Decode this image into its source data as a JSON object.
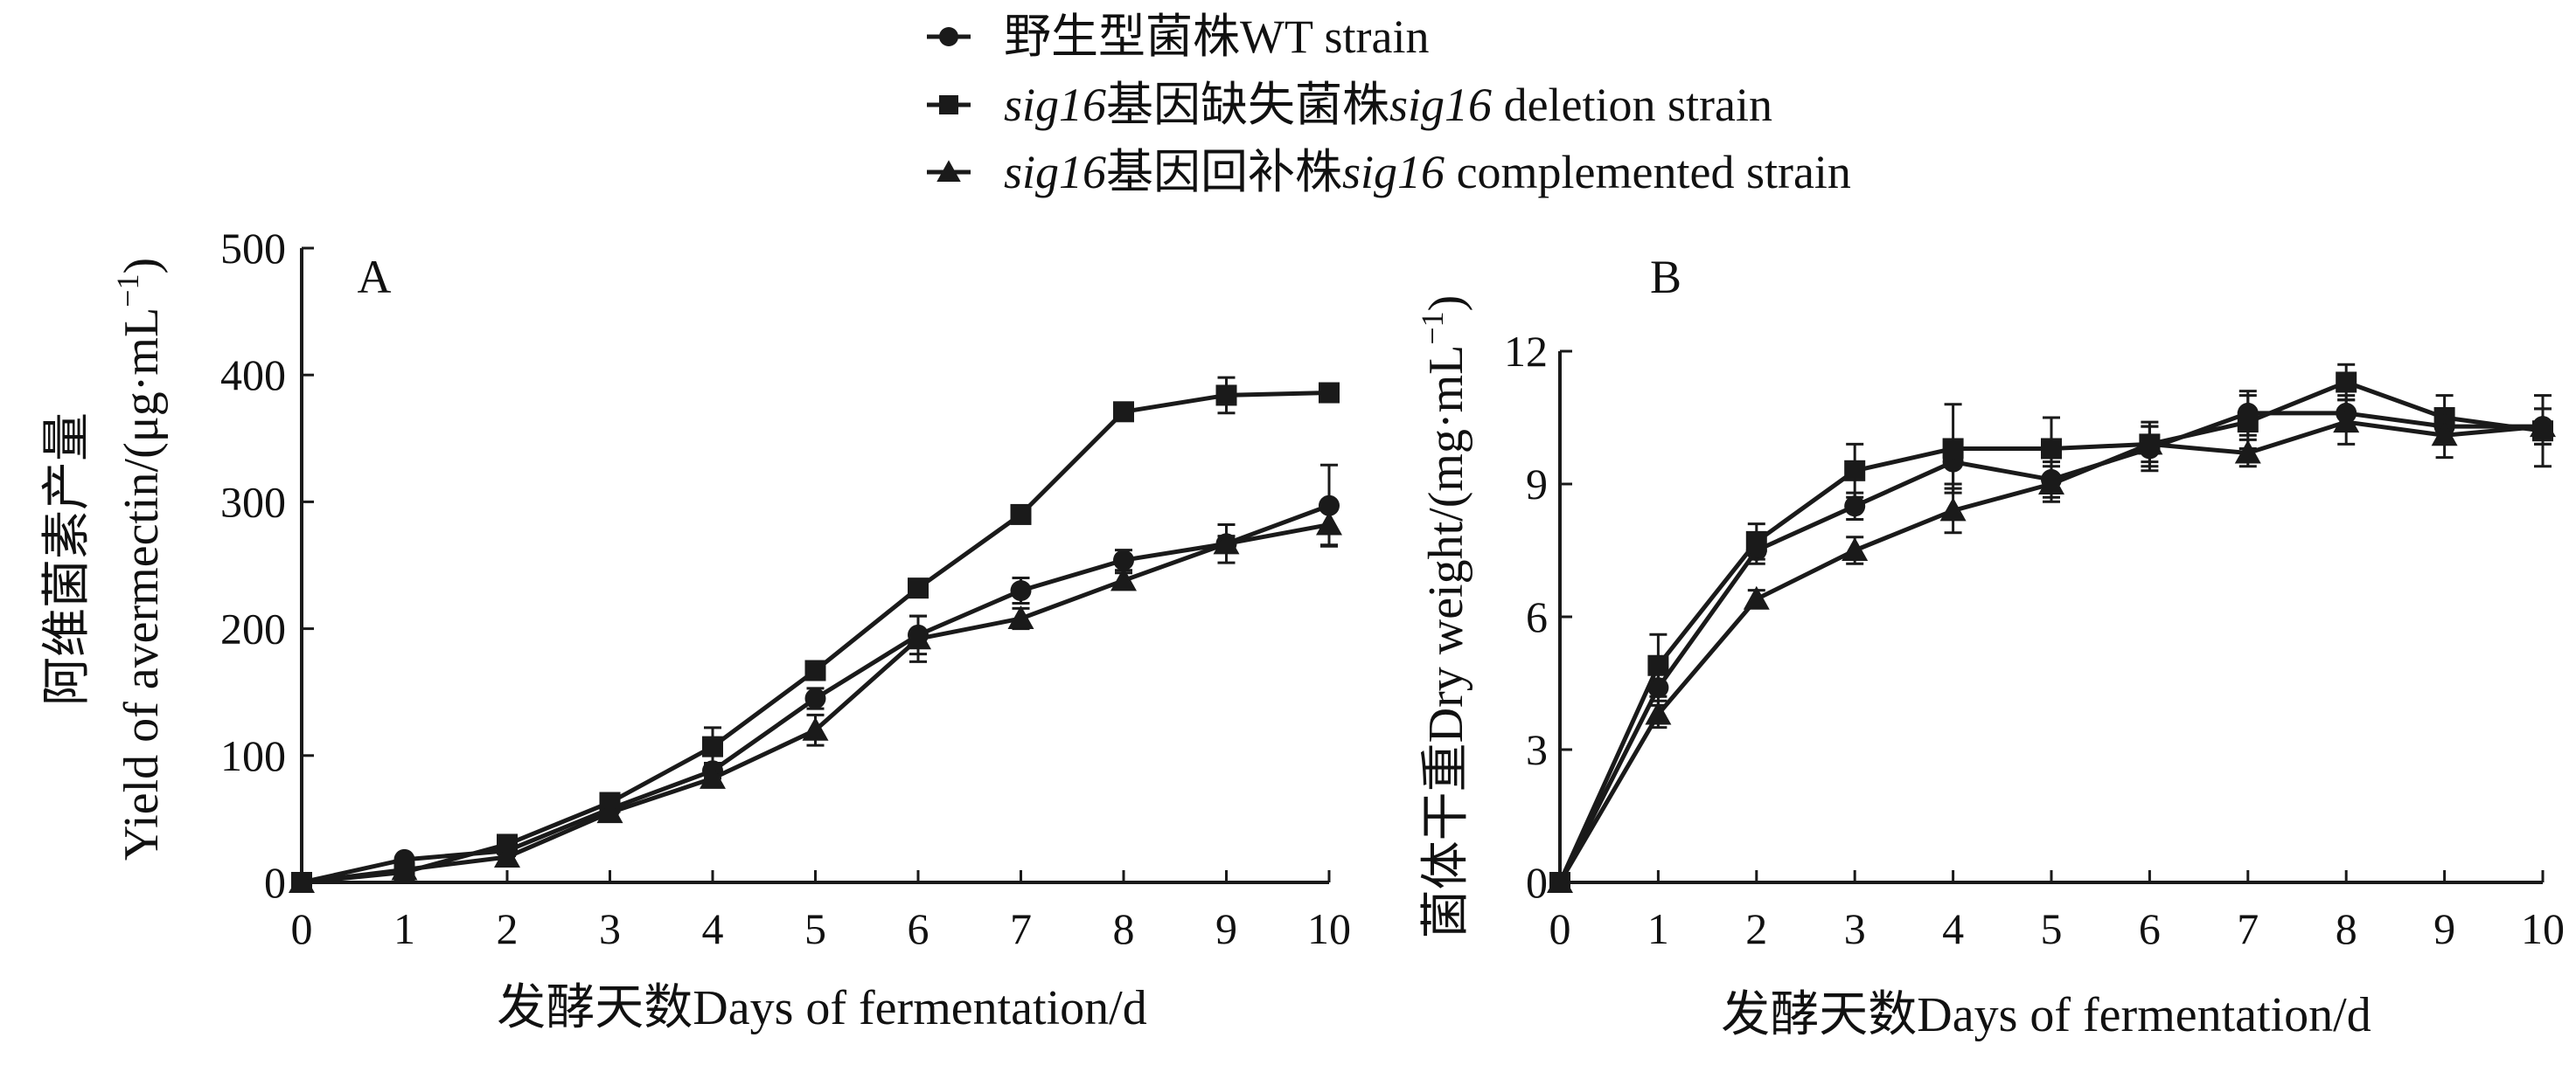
{
  "legend": {
    "items": [
      {
        "marker": "circle",
        "parts": [
          {
            "t": "野生型菌株WT strain",
            "i": false
          }
        ]
      },
      {
        "marker": "square",
        "parts": [
          {
            "t": "sig16",
            "i": true
          },
          {
            "t": "基因缺失菌株",
            "i": false
          },
          {
            "t": "sig16",
            "i": true
          },
          {
            "t": " deletion strain",
            "i": false
          }
        ]
      },
      {
        "marker": "triangle",
        "parts": [
          {
            "t": "sig16",
            "i": true
          },
          {
            "t": "基因回补株",
            "i": false
          },
          {
            "t": "sig16",
            "i": true
          },
          {
            "t": " complemented strain",
            "i": false
          }
        ]
      }
    ]
  },
  "chart_data": [
    {
      "type": "line",
      "panel_label": "A",
      "xlabel": "发酵天数Days of fermentation/d",
      "ylabel": "阿维菌素产量",
      "ylabel_line2": "Yield of avermectin/(μg·mL",
      "ylabel_sup": "−1",
      "ylabel_close": ")",
      "xlim": [
        0,
        10
      ],
      "ylim": [
        0,
        500
      ],
      "xticks": [
        0,
        1,
        2,
        3,
        4,
        5,
        6,
        7,
        8,
        9,
        10
      ],
      "yticks": [
        0,
        100,
        200,
        300,
        400,
        500
      ],
      "grid": false,
      "x": [
        0,
        1,
        2,
        3,
        4,
        5,
        6,
        7,
        8,
        9,
        10
      ],
      "series": [
        {
          "name": "野生型菌株WT strain",
          "marker": "circle",
          "values": [
            0,
            18,
            25,
            58,
            88,
            145,
            195,
            230,
            254,
            267,
            297
          ],
          "errors": [
            0,
            3,
            4,
            4,
            6,
            8,
            15,
            10,
            8,
            15,
            32
          ]
        },
        {
          "name": "sig16基因缺失菌株sig16 deletion strain",
          "marker": "square",
          "values": [
            0,
            8,
            30,
            63,
            107,
            167,
            232,
            290,
            371,
            384,
            386
          ],
          "errors": [
            0,
            2,
            4,
            4,
            15,
            6,
            5,
            5,
            5,
            14,
            4
          ]
        },
        {
          "name": "sig16基因回补株sig16 complemented strain",
          "marker": "triangle",
          "values": [
            0,
            10,
            20,
            55,
            82,
            120,
            192,
            208,
            238,
            267,
            282
          ],
          "errors": [
            0,
            2,
            3,
            4,
            5,
            12,
            18,
            8,
            6,
            6,
            16
          ]
        }
      ]
    },
    {
      "type": "line",
      "panel_label": "B",
      "xlabel": "发酵天数Days of fermentation/d",
      "ylabel": "菌体干重Dry weight/(mg·mL",
      "ylabel_sup": "−1",
      "ylabel_close": ")",
      "xlim": [
        0,
        10
      ],
      "ylim": [
        0,
        12
      ],
      "xticks": [
        0,
        1,
        2,
        3,
        4,
        5,
        6,
        7,
        8,
        9,
        10
      ],
      "yticks": [
        0,
        3,
        6,
        9,
        12
      ],
      "grid": false,
      "x": [
        0,
        1,
        2,
        3,
        4,
        5,
        6,
        7,
        8,
        9,
        10
      ],
      "series": [
        {
          "name": "野生型菌株WT strain",
          "marker": "circle",
          "values": [
            0,
            4.4,
            7.5,
            8.5,
            9.5,
            9.1,
            9.8,
            10.6,
            10.6,
            10.3,
            10.3
          ],
          "errors": [
            0,
            0.4,
            0.3,
            0.3,
            0.5,
            0.4,
            0.5,
            0.5,
            0.4,
            0.4,
            0.4
          ]
        },
        {
          "name": "sig16基因缺失菌株sig16 deletion strain",
          "marker": "square",
          "values": [
            0,
            4.9,
            7.7,
            9.3,
            9.8,
            9.8,
            9.9,
            10.4,
            11.3,
            10.5,
            10.2
          ],
          "errors": [
            0,
            0.7,
            0.4,
            0.6,
            1.0,
            0.7,
            0.5,
            0.6,
            0.4,
            0.5,
            0.8
          ]
        },
        {
          "name": "sig16基因回补株sig16 complemented strain",
          "marker": "triangle",
          "values": [
            0,
            3.8,
            6.4,
            7.5,
            8.4,
            9.0,
            9.9,
            9.7,
            10.4,
            10.1,
            10.3
          ],
          "errors": [
            0,
            0.3,
            0.2,
            0.3,
            0.5,
            0.4,
            0.4,
            0.3,
            0.5,
            0.5,
            0.4
          ]
        }
      ]
    }
  ]
}
